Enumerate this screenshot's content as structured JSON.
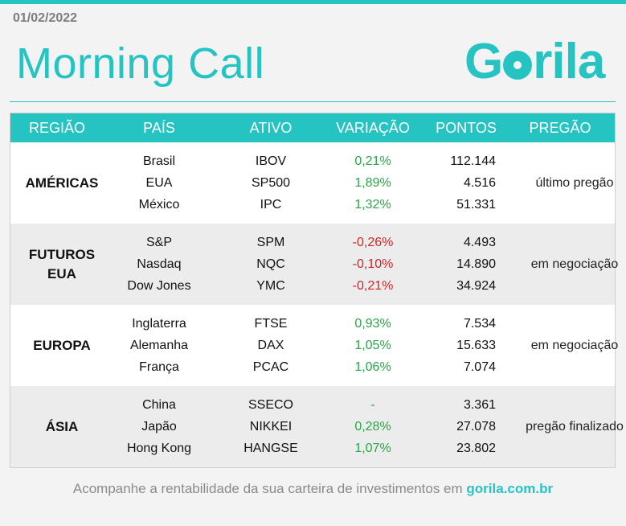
{
  "header": {
    "date": "01/02/2022",
    "title": "Morning Call",
    "logo_pre": "G",
    "logo_post": "rila"
  },
  "table": {
    "columns": [
      "REGIÃO",
      "PAÍS",
      "ATIVO",
      "VARIAÇÃO",
      "PONTOS",
      "PREGÃO"
    ],
    "groups": [
      {
        "region": "AMÉRICAS",
        "status": "último pregão",
        "rows": [
          {
            "pais": "Brasil",
            "ativo": "IBOV",
            "variacao": "0,21%",
            "pontos": "112.144",
            "trend": "pos"
          },
          {
            "pais": "EUA",
            "ativo": "SP500",
            "variacao": "1,89%",
            "pontos": "4.516",
            "trend": "pos"
          },
          {
            "pais": "México",
            "ativo": "IPC",
            "variacao": "1,32%",
            "pontos": "51.331",
            "trend": "pos"
          }
        ]
      },
      {
        "region": "FUTUROS EUA",
        "status": "em negociação",
        "rows": [
          {
            "pais": "S&P",
            "ativo": "SPM",
            "variacao": "-0,26%",
            "pontos": "4.493",
            "trend": "neg"
          },
          {
            "pais": "Nasdaq",
            "ativo": "NQC",
            "variacao": "-0,10%",
            "pontos": "14.890",
            "trend": "neg"
          },
          {
            "pais": "Dow Jones",
            "ativo": "YMC",
            "variacao": "-0,21%",
            "pontos": "34.924",
            "trend": "neg"
          }
        ]
      },
      {
        "region": "EUROPA",
        "status": "em negociação",
        "rows": [
          {
            "pais": "Inglaterra",
            "ativo": "FTSE",
            "variacao": "0,93%",
            "pontos": "7.534",
            "trend": "pos"
          },
          {
            "pais": "Alemanha",
            "ativo": "DAX",
            "variacao": "1,05%",
            "pontos": "15.633",
            "trend": "pos"
          },
          {
            "pais": "França",
            "ativo": "PCAC",
            "variacao": "1,06%",
            "pontos": "7.074",
            "trend": "pos"
          }
        ]
      },
      {
        "region": "ÁSIA",
        "status": "pregão finalizado",
        "rows": [
          {
            "pais": "China",
            "ativo": "SSECO",
            "variacao": "-",
            "pontos": "3.361",
            "trend": "neu"
          },
          {
            "pais": "Japão",
            "ativo": "NIKKEI",
            "variacao": "0,28%",
            "pontos": "27.078",
            "trend": "pos"
          },
          {
            "pais": "Hong Kong",
            "ativo": "HANGSE",
            "variacao": "1,07%",
            "pontos": "23.802",
            "trend": "pos"
          }
        ]
      }
    ]
  },
  "footer": {
    "text": "Acompanhe a rentabilidade da sua carteira de investimentos em ",
    "link": "gorila.com.br"
  },
  "colors": {
    "accent": "#26c3c3",
    "positive": "#27a844",
    "negative": "#d62525"
  }
}
